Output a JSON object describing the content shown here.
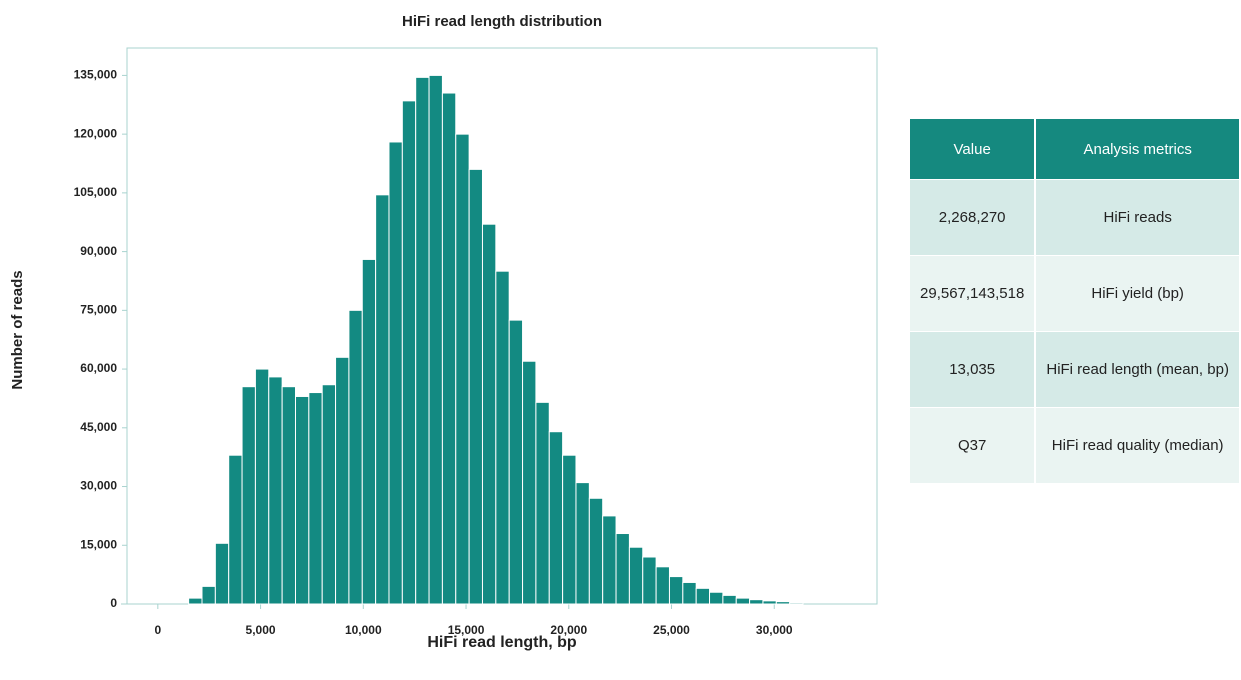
{
  "chart_data": {
    "type": "histogram",
    "title": "HiFi read length distribution",
    "x_label": "HiFi read length, bp",
    "y_label": "Number of reads",
    "color": "#138a82",
    "bins": [
      1500,
      2150,
      2800,
      3450,
      4100,
      4750,
      5400,
      6050,
      6700,
      7350,
      8000,
      8650,
      9300,
      9950,
      10600,
      11250,
      11900,
      12550,
      13200,
      13850,
      14500,
      15150,
      15800,
      16450,
      17100,
      17750,
      18400,
      19050,
      19700,
      20350,
      21000,
      21650,
      22300,
      22950,
      23600,
      24250,
      24900,
      25550,
      26200,
      26850,
      27500,
      28150,
      28800,
      29450,
      30100,
      30750,
      31400
    ],
    "values": [
      1500,
      4500,
      15500,
      38000,
      55500,
      60000,
      58000,
      55500,
      53000,
      54000,
      56000,
      63000,
      75000,
      88000,
      104500,
      118000,
      128500,
      134500,
      135000,
      130500,
      120000,
      111000,
      97000,
      85000,
      72500,
      62000,
      51500,
      44000,
      38000,
      31000,
      27000,
      22500,
      18000,
      14500,
      12000,
      9500,
      7000,
      5500,
      4000,
      3000,
      2200,
      1500,
      1100,
      800,
      600,
      300
    ],
    "xlim": [
      -1500,
      35000
    ],
    "xticks": [
      0,
      {
        "value": 5000,
        "label": "5,000"
      },
      {
        "value": 10000,
        "label": "10,000"
      },
      {
        "value": 15000,
        "label": "15,000"
      },
      {
        "value": 20000,
        "label": "20,000"
      },
      {
        "value": 25000,
        "label": "25,000"
      },
      {
        "value": 30000,
        "label": "30,000"
      }
    ],
    "ylim": [
      0,
      142000
    ],
    "yticks": [
      0,
      {
        "value": 15000,
        "label": "15,000"
      },
      {
        "value": 30000,
        "label": "30,000"
      },
      {
        "value": 45000,
        "label": "45,000"
      },
      {
        "value": 60000,
        "label": "60,000"
      },
      {
        "value": 75000,
        "label": "75,000"
      },
      {
        "value": 90000,
        "label": "90,000"
      },
      {
        "value": 105000,
        "label": "105,000"
      },
      {
        "value": 120000,
        "label": "120,000"
      },
      {
        "value": 135000,
        "label": "135,000"
      }
    ],
    "grid": false
  },
  "table": {
    "header": [
      "Value",
      "Analysis metrics"
    ],
    "rows": [
      [
        "2,268,270",
        "HiFi reads"
      ],
      [
        "29,567,143,518",
        "HiFi yield (bp)"
      ],
      [
        "13,035",
        "HiFi read length (mean, bp)"
      ],
      [
        "Q37",
        "HiFi read quality (median)"
      ]
    ]
  }
}
